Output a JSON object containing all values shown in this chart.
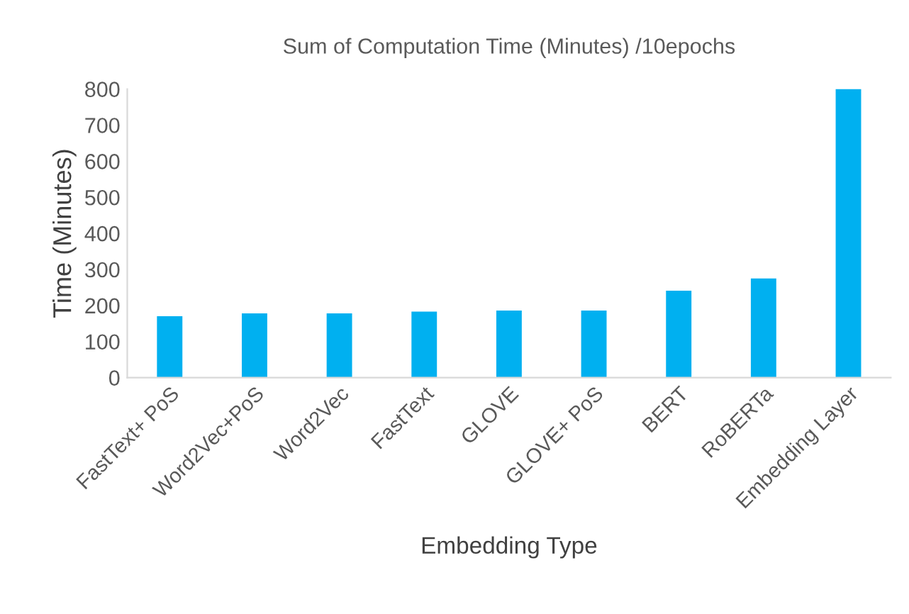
{
  "chart_data": {
    "type": "bar",
    "title": "Sum of Computation Time (Minutes) /10epochs",
    "xlabel": "Embedding Type",
    "ylabel": "Time (Minutes)",
    "categories": [
      "FastText+ PoS",
      "Word2Vec+PoS",
      "Word2Vec",
      "FastText",
      "GLOVE",
      "GLOVE+ PoS",
      "BERT",
      "RoBERTa",
      "Embedding Layer"
    ],
    "values": [
      170,
      178,
      178,
      183,
      186,
      186,
      241,
      275,
      800
    ],
    "color": "#00b0f0",
    "ylim": [
      0,
      800
    ],
    "yticks": [
      0,
      100,
      200,
      300,
      400,
      500,
      600,
      700,
      800
    ],
    "grid": false
  }
}
